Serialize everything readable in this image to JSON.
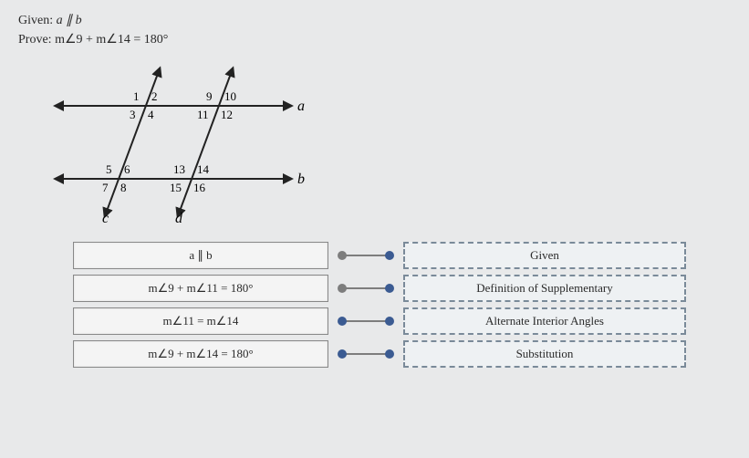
{
  "given_label": "Given:",
  "given_stmt": "a ∥ b",
  "prove_label": "Prove:",
  "prove_stmt": "m∠9 + m∠14 = 180°",
  "diagram": {
    "line_color": "#222222",
    "text_color": "#222222",
    "italic_color": "#222222",
    "labels": {
      "a": "a",
      "b": "b",
      "c": "c",
      "d": "d",
      "n1": "1",
      "n2": "2",
      "n3": "3",
      "n4": "4",
      "n5": "5",
      "n6": "6",
      "n7": "7",
      "n8": "8",
      "n9": "9",
      "n10": "10",
      "n11": "11",
      "n12": "12",
      "n13": "13",
      "n14": "14",
      "n15": "15",
      "n16": "16"
    }
  },
  "colors": {
    "connector_gray": "#7d7d7d",
    "connector_blue": "#3b5b92",
    "reason_border": "#7a8a99"
  },
  "proof": [
    {
      "statement": "a ∥ b",
      "reason": "Given",
      "color_mode": "gray-blue"
    },
    {
      "statement": "m∠9 + m∠11 = 180°",
      "reason": "Definition of Supplementary",
      "color_mode": "gray-blue"
    },
    {
      "statement": "m∠11 = m∠14",
      "reason": "Alternate Interior Angles",
      "color_mode": "blue-blue"
    },
    {
      "statement": "m∠9 + m∠14 = 180°",
      "reason": "Substitution",
      "color_mode": "blue-blue"
    }
  ]
}
